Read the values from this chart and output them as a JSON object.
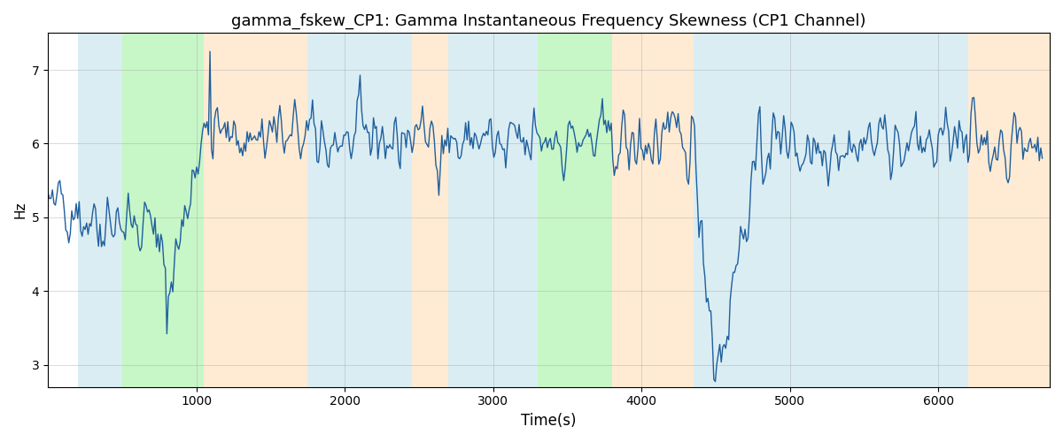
{
  "title": "gamma_fskew_CP1: Gamma Instantaneous Frequency Skewness (CP1 Channel)",
  "xlabel": "Time(s)",
  "ylabel": "Hz",
  "background_regions": [
    {
      "start": 200,
      "end": 500,
      "color": "#add8e6",
      "alpha": 0.45
    },
    {
      "start": 500,
      "end": 1050,
      "color": "#90ee90",
      "alpha": 0.5
    },
    {
      "start": 1050,
      "end": 1750,
      "color": "#ffd8a8",
      "alpha": 0.5
    },
    {
      "start": 1750,
      "end": 2450,
      "color": "#add8e6",
      "alpha": 0.45
    },
    {
      "start": 2450,
      "end": 2700,
      "color": "#ffd8a8",
      "alpha": 0.5
    },
    {
      "start": 2700,
      "end": 3300,
      "color": "#add8e6",
      "alpha": 0.45
    },
    {
      "start": 3300,
      "end": 3800,
      "color": "#90ee90",
      "alpha": 0.5
    },
    {
      "start": 3800,
      "end": 4350,
      "color": "#ffd8a8",
      "alpha": 0.5
    },
    {
      "start": 4350,
      "end": 6200,
      "color": "#add8e6",
      "alpha": 0.45
    },
    {
      "start": 6200,
      "end": 6750,
      "color": "#ffd8a8",
      "alpha": 0.5
    }
  ],
  "line_color": "#1f5f9e",
  "line_width": 1.0,
  "ylim": [
    2.7,
    7.5
  ],
  "xlim": [
    0,
    6750
  ],
  "xticks": [
    1000,
    2000,
    3000,
    4000,
    5000,
    6000
  ],
  "yticks": [
    3,
    4,
    5,
    6,
    7
  ],
  "grid_color": "#aaaaaa",
  "grid_alpha": 0.6,
  "title_fontsize": 13,
  "xlabel_fontsize": 12,
  "ylabel_fontsize": 11,
  "figsize": [
    12,
    5
  ],
  "dpi": 100,
  "seed": 42,
  "n_points": 670
}
